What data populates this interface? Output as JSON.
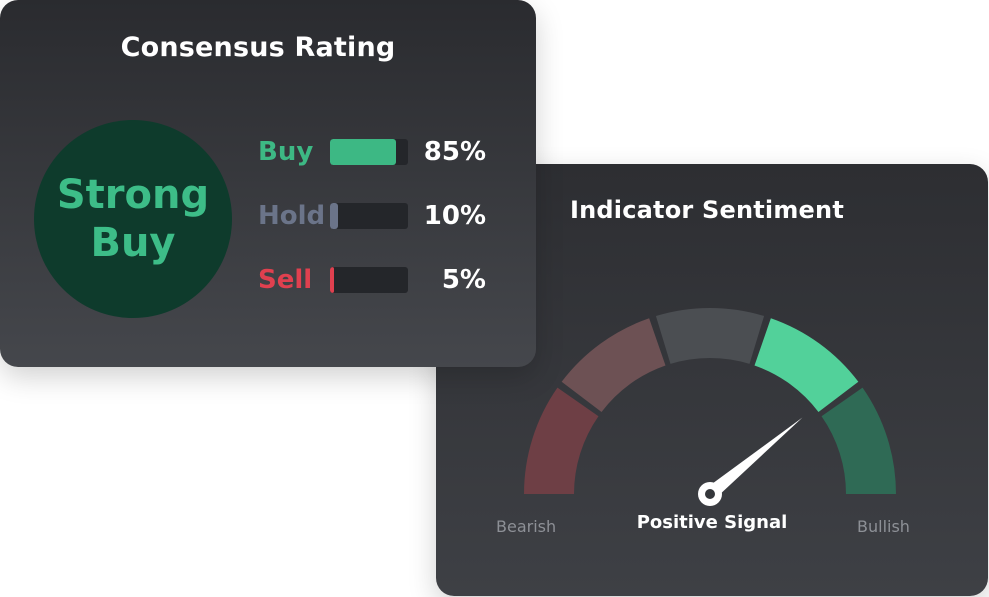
{
  "consensus": {
    "title": "Consensus Rating",
    "verdict_line1": "Strong",
    "verdict_line2": "Buy",
    "ratings": [
      {
        "label": "Buy",
        "percent": "85%",
        "fraction": 0.85,
        "color": "#3db884"
      },
      {
        "label": "Hold",
        "percent": "10%",
        "fraction": 0.1,
        "color": "#6b7489"
      },
      {
        "label": "Sell",
        "percent": "5%",
        "fraction": 0.05,
        "color": "#e0404f"
      }
    ]
  },
  "sentiment": {
    "title": "Indicator Sentiment",
    "bearish_label": "Bearish",
    "bullish_label": "Bullish",
    "signal_label": "Positive Signal",
    "needle_value": 0.78,
    "segments": [
      {
        "name": "strong-bearish",
        "color": "#6e3f45"
      },
      {
        "name": "bearish",
        "color": "#6d5154"
      },
      {
        "name": "neutral",
        "color": "#4b4e52"
      },
      {
        "name": "bullish",
        "color": "#52d19a"
      },
      {
        "name": "strong-bullish",
        "color": "#2f6a55"
      }
    ]
  }
}
